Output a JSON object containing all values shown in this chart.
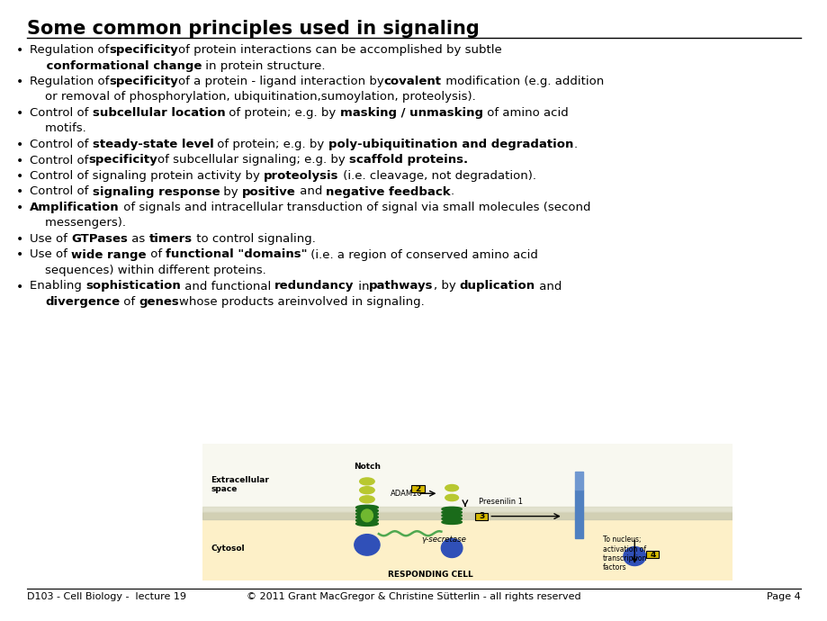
{
  "title": "Some common principles used in signaling",
  "title_fontsize": 15,
  "bg_color": "#ffffff",
  "text_color": "#000000",
  "bullets": [
    [
      {
        "t": "Regulation of",
        "b": false
      },
      {
        "t": "specificity",
        "b": true
      },
      {
        "t": "of protein interactions can be accomplished by subtle",
        "b": false
      }
    ],
    [
      {
        "t": "    conformational change",
        "b": true
      },
      {
        "t": " in protein structure.",
        "b": false
      }
    ],
    [
      {
        "t": "Regulation of",
        "b": false
      },
      {
        "t": "specificity",
        "b": true
      },
      {
        "t": "of a protein - ligand interaction by",
        "b": false
      },
      {
        "t": "covalent",
        "b": true
      },
      {
        "t": " modification (e.g. addition",
        "b": false
      }
    ],
    [
      {
        "t": "    or removal of phosphorylation, ubiquitination,sumoylation, proteolysis).",
        "b": false
      }
    ],
    [
      {
        "t": "Control of ",
        "b": false
      },
      {
        "t": "subcellular location",
        "b": true
      },
      {
        "t": " of protein; e.g. by ",
        "b": false
      },
      {
        "t": "masking / unmasking",
        "b": true
      },
      {
        "t": " of amino acid",
        "b": false
      }
    ],
    [
      {
        "t": "    motifs.",
        "b": false
      }
    ],
    [
      {
        "t": "Control of ",
        "b": false
      },
      {
        "t": "steady-state level",
        "b": true
      },
      {
        "t": " of protein; e.g. by ",
        "b": false
      },
      {
        "t": "poly-ubiquitination and degradation",
        "b": true
      },
      {
        "t": ".",
        "b": false
      }
    ],
    [
      {
        "t": "Control of",
        "b": false
      },
      {
        "t": "specificity",
        "b": true
      },
      {
        "t": "of subcellular signaling; e.g. by ",
        "b": false
      },
      {
        "t": "scaffold proteins.",
        "b": true
      }
    ],
    [
      {
        "t": "Control of signaling protein activity by ",
        "b": false
      },
      {
        "t": "proteolysis",
        "b": true
      },
      {
        "t": " (i.e. cleavage, not degradation).",
        "b": false
      }
    ],
    [
      {
        "t": "Control of ",
        "b": false
      },
      {
        "t": "signaling response",
        "b": true
      },
      {
        "t": " by ",
        "b": false
      },
      {
        "t": "positive",
        "b": true
      },
      {
        "t": " and ",
        "b": false
      },
      {
        "t": "negative feedback",
        "b": true
      },
      {
        "t": ".",
        "b": false
      }
    ],
    [
      {
        "t": "Amplification",
        "b": true
      },
      {
        "t": " of signals and intracellular transduction of signal via small molecules (second",
        "b": false
      }
    ],
    [
      {
        "t": "    messengers).",
        "b": false
      }
    ],
    [
      {
        "t": "Use of ",
        "b": false
      },
      {
        "t": "GTPases",
        "b": true
      },
      {
        "t": " as ",
        "b": false
      },
      {
        "t": "timers",
        "b": true
      },
      {
        "t": " to control signaling.",
        "b": false
      }
    ],
    [
      {
        "t": "Use of ",
        "b": false
      },
      {
        "t": "wide range",
        "b": true
      },
      {
        "t": " of ",
        "b": false
      },
      {
        "t": "functional \"domains\"",
        "b": true
      },
      {
        "t": " (i.e. a region of conserved amino acid",
        "b": false
      }
    ],
    [
      {
        "t": "    sequences) within different proteins.",
        "b": false
      }
    ],
    [
      {
        "t": "Enabling ",
        "b": false
      },
      {
        "t": "sophistication",
        "b": true
      },
      {
        "t": " and functional ",
        "b": false
      },
      {
        "t": "redundancy",
        "b": true
      },
      {
        "t": " in",
        "b": false
      },
      {
        "t": "pathways",
        "b": true
      },
      {
        "t": ", by ",
        "b": false
      },
      {
        "t": "duplication",
        "b": true
      },
      {
        "t": " and",
        "b": false
      }
    ],
    [
      {
        "t": "    ",
        "b": false
      },
      {
        "t": "divergence",
        "b": true
      },
      {
        "t": " of ",
        "b": false
      },
      {
        "t": "genes",
        "b": true
      },
      {
        "t": "whose products are",
        "b": false
      },
      {
        "t": "involved in signaling.",
        "b": false
      }
    ]
  ],
  "bullet_rows": [
    0,
    2,
    4,
    6,
    7,
    8,
    9,
    10,
    12,
    13,
    15
  ],
  "footer_left": "D103 - Cell Biology -  lecture 19",
  "footer_center": "© 2011 Grant MacGregor & Christine Sütterlin - all rights reserved",
  "footer_right": "Page 4",
  "footer_fontsize": 8,
  "body_fontsize": 9.5
}
